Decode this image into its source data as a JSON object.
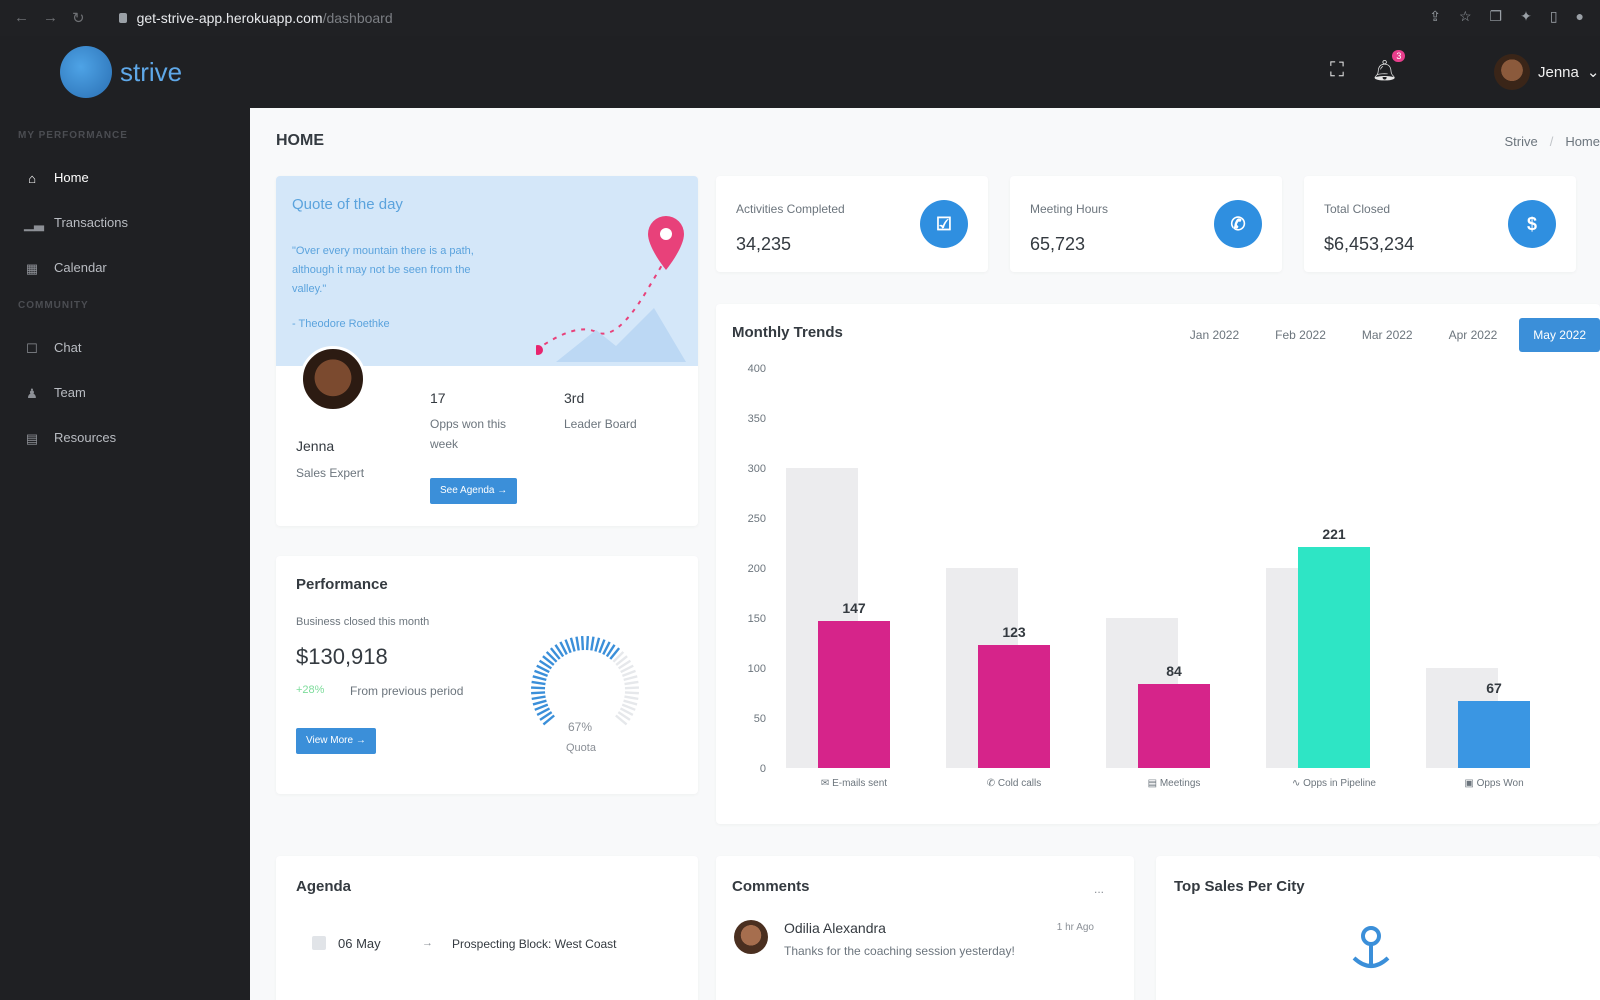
{
  "browser": {
    "url_host": "get-strive-app.herokuapp.com",
    "url_path": "/dashboard"
  },
  "header": {
    "brand": "strive",
    "notification_count": "3",
    "user_name": "Jenna"
  },
  "sidebar": {
    "sections": [
      {
        "title": "MY PERFORMANCE",
        "items": [
          {
            "label": "Home",
            "icon": "home-icon",
            "active": true
          },
          {
            "label": "Transactions",
            "icon": "chart-icon"
          },
          {
            "label": "Calendar",
            "icon": "calendar-icon"
          }
        ]
      },
      {
        "title": "COMMUNITY",
        "items": [
          {
            "label": "Chat",
            "icon": "chat-icon"
          },
          {
            "label": "Team",
            "icon": "team-icon"
          },
          {
            "label": "Resources",
            "icon": "resources-icon"
          }
        ]
      }
    ]
  },
  "page": {
    "title": "HOME",
    "breadcrumb": [
      "Strive",
      "Home"
    ]
  },
  "quote": {
    "title": "Quote of the day",
    "text": "\"Over every mountain there is a path, although it may not be seen from the valley.\"",
    "author": "- Theodore Roethke"
  },
  "profile": {
    "name": "Jenna",
    "role": "Sales Expert",
    "opps_value": "17",
    "opps_label": "Opps won this week",
    "rank_value": "3rd",
    "rank_label": "Leader Board",
    "button": "See Agenda"
  },
  "stats": [
    {
      "label": "Activities Completed",
      "value": "34,235",
      "icon": "check-icon",
      "glyph": "☑"
    },
    {
      "label": "Meeting Hours",
      "value": "65,723",
      "icon": "phone-icon",
      "glyph": "✆"
    },
    {
      "label": "Total Closed",
      "value": "$6,453,234",
      "icon": "dollar-icon",
      "glyph": "$"
    }
  ],
  "performance": {
    "title": "Performance",
    "subtitle": "Business closed this month",
    "value": "$130,918",
    "delta": "+28%",
    "delta_label": "From previous period",
    "button": "View More",
    "gauge_percent": 67,
    "gauge_value": "67%",
    "gauge_label": "Quota"
  },
  "trends": {
    "title": "Monthly Trends",
    "months": [
      "Jan 2022",
      "Feb 2022",
      "Mar 2022",
      "Apr 2022",
      "May 2022"
    ],
    "active_month": "May 2022"
  },
  "chart_data": {
    "type": "bar",
    "categories": [
      "E-mails sent",
      "Cold calls",
      "Meetings",
      "Opps in Pipeline",
      "Opps Won"
    ],
    "category_icons": [
      "✉",
      "✆",
      "▤",
      "∿",
      "▣"
    ],
    "series": [
      {
        "name": "",
        "values": [
          300,
          200,
          150,
          200,
          100
        ],
        "color": "#ececee"
      },
      {
        "name": "",
        "values": [
          147,
          123,
          84,
          221,
          67
        ],
        "colors": [
          "#d6248a",
          "#d6248a",
          "#d6248a",
          "#2ee5c5",
          "#3a96e3"
        ]
      }
    ],
    "data_labels": [
      "147",
      "123",
      "84",
      "221",
      "67"
    ],
    "yticks": [
      0,
      50,
      100,
      150,
      200,
      250,
      300,
      350,
      400
    ],
    "ylim": [
      0,
      400
    ],
    "grid": false,
    "title": "Monthly Trends",
    "xlabel": "",
    "ylabel": ""
  },
  "agenda": {
    "title": "Agenda",
    "date": "06 May",
    "event": "Prospecting Block: West Coast"
  },
  "comments": {
    "title": "Comments",
    "more": "...",
    "name": "Odilia Alexandra",
    "time": "1 hr Ago",
    "text": "Thanks for the coaching session yesterday!"
  },
  "top_sales": {
    "title": "Top Sales Per City"
  }
}
